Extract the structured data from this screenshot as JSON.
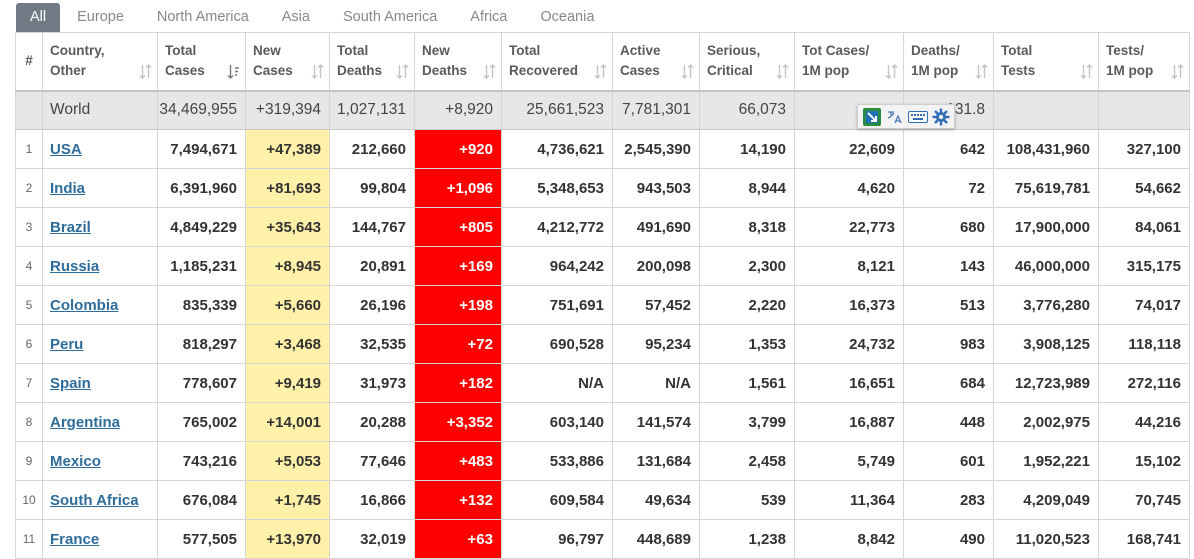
{
  "tabs": [
    {
      "label": "All",
      "active": true
    },
    {
      "label": "Europe"
    },
    {
      "label": "North America"
    },
    {
      "label": "Asia"
    },
    {
      "label": "South America"
    },
    {
      "label": "Africa"
    },
    {
      "label": "Oceania"
    }
  ],
  "columns": [
    {
      "key": "num",
      "line1": "#",
      "line2": ""
    },
    {
      "key": "country",
      "line1": "Country,",
      "line2": "Other"
    },
    {
      "key": "total_cases",
      "line1": "Total",
      "line2": "Cases"
    },
    {
      "key": "new_cases",
      "line1": "New",
      "line2": "Cases"
    },
    {
      "key": "total_deaths",
      "line1": "Total",
      "line2": "Deaths"
    },
    {
      "key": "new_deaths",
      "line1": "New",
      "line2": "Deaths"
    },
    {
      "key": "total_recovered",
      "line1": "Total",
      "line2": "Recovered"
    },
    {
      "key": "active_cases",
      "line1": "Active",
      "line2": "Cases"
    },
    {
      "key": "serious_critical",
      "line1": "Serious,",
      "line2": "Critical"
    },
    {
      "key": "cases_per_1m",
      "line1": "Tot Cases/",
      "line2": "1M pop"
    },
    {
      "key": "deaths_per_1m",
      "line1": "Deaths/",
      "line2": "1M pop"
    },
    {
      "key": "total_tests",
      "line1": "Total",
      "line2": "Tests"
    },
    {
      "key": "tests_per_1m",
      "line1": "Tests/",
      "line2": "1M pop"
    }
  ],
  "world": {
    "num": "",
    "country": "World",
    "total_cases": "34,469,955",
    "new_cases": "+319,394",
    "total_deaths": "1,027,131",
    "new_deaths": "+8,920",
    "total_recovered": "25,661,523",
    "active_cases": "7,781,301",
    "serious_critical": "66,073",
    "cases_per_1m": "",
    "deaths_per_1m": "131.8",
    "total_tests": "",
    "tests_per_1m": ""
  },
  "rows": [
    {
      "num": "1",
      "country": "USA",
      "total_cases": "7,494,671",
      "new_cases": "+47,389",
      "total_deaths": "212,660",
      "new_deaths": "+920",
      "total_recovered": "4,736,621",
      "active_cases": "2,545,390",
      "serious_critical": "14,190",
      "cases_per_1m": "22,609",
      "deaths_per_1m": "642",
      "total_tests": "108,431,960",
      "tests_per_1m": "327,100"
    },
    {
      "num": "2",
      "country": "India",
      "total_cases": "6,391,960",
      "new_cases": "+81,693",
      "total_deaths": "99,804",
      "new_deaths": "+1,096",
      "total_recovered": "5,348,653",
      "active_cases": "943,503",
      "serious_critical": "8,944",
      "cases_per_1m": "4,620",
      "deaths_per_1m": "72",
      "total_tests": "75,619,781",
      "tests_per_1m": "54,662"
    },
    {
      "num": "3",
      "country": "Brazil",
      "total_cases": "4,849,229",
      "new_cases": "+35,643",
      "total_deaths": "144,767",
      "new_deaths": "+805",
      "total_recovered": "4,212,772",
      "active_cases": "491,690",
      "serious_critical": "8,318",
      "cases_per_1m": "22,773",
      "deaths_per_1m": "680",
      "total_tests": "17,900,000",
      "tests_per_1m": "84,061"
    },
    {
      "num": "4",
      "country": "Russia",
      "total_cases": "1,185,231",
      "new_cases": "+8,945",
      "total_deaths": "20,891",
      "new_deaths": "+169",
      "total_recovered": "964,242",
      "active_cases": "200,098",
      "serious_critical": "2,300",
      "cases_per_1m": "8,121",
      "deaths_per_1m": "143",
      "total_tests": "46,000,000",
      "tests_per_1m": "315,175"
    },
    {
      "num": "5",
      "country": "Colombia",
      "total_cases": "835,339",
      "new_cases": "+5,660",
      "total_deaths": "26,196",
      "new_deaths": "+198",
      "total_recovered": "751,691",
      "active_cases": "57,452",
      "serious_critical": "2,220",
      "cases_per_1m": "16,373",
      "deaths_per_1m": "513",
      "total_tests": "3,776,280",
      "tests_per_1m": "74,017"
    },
    {
      "num": "6",
      "country": "Peru",
      "total_cases": "818,297",
      "new_cases": "+3,468",
      "total_deaths": "32,535",
      "new_deaths": "+72",
      "total_recovered": "690,528",
      "active_cases": "95,234",
      "serious_critical": "1,353",
      "cases_per_1m": "24,732",
      "deaths_per_1m": "983",
      "total_tests": "3,908,125",
      "tests_per_1m": "118,118"
    },
    {
      "num": "7",
      "country": "Spain",
      "total_cases": "778,607",
      "new_cases": "+9,419",
      "total_deaths": "31,973",
      "new_deaths": "+182",
      "total_recovered": "N/A",
      "active_cases": "N/A",
      "serious_critical": "1,561",
      "cases_per_1m": "16,651",
      "deaths_per_1m": "684",
      "total_tests": "12,723,989",
      "tests_per_1m": "272,116"
    },
    {
      "num": "8",
      "country": "Argentina",
      "total_cases": "765,002",
      "new_cases": "+14,001",
      "total_deaths": "20,288",
      "new_deaths": "+3,352",
      "total_recovered": "603,140",
      "active_cases": "141,574",
      "serious_critical": "3,799",
      "cases_per_1m": "16,887",
      "deaths_per_1m": "448",
      "total_tests": "2,002,975",
      "tests_per_1m": "44,216"
    },
    {
      "num": "9",
      "country": "Mexico",
      "total_cases": "743,216",
      "new_cases": "+5,053",
      "total_deaths": "77,646",
      "new_deaths": "+483",
      "total_recovered": "533,886",
      "active_cases": "131,684",
      "serious_critical": "2,458",
      "cases_per_1m": "5,749",
      "deaths_per_1m": "601",
      "total_tests": "1,952,221",
      "tests_per_1m": "15,102"
    },
    {
      "num": "10",
      "country": "South Africa",
      "total_cases": "676,084",
      "new_cases": "+1,745",
      "total_deaths": "16,866",
      "new_deaths": "+132",
      "total_recovered": "609,584",
      "active_cases": "49,634",
      "serious_critical": "539",
      "cases_per_1m": "11,364",
      "deaths_per_1m": "283",
      "total_tests": "4,209,049",
      "tests_per_1m": "70,745"
    },
    {
      "num": "11",
      "country": "France",
      "total_cases": "577,505",
      "new_cases": "+13,970",
      "total_deaths": "32,019",
      "new_deaths": "+63",
      "total_recovered": "96,797",
      "active_cases": "448,689",
      "serious_critical": "1,238",
      "cases_per_1m": "8,842",
      "deaths_per_1m": "490",
      "total_tests": "11,020,523",
      "tests_per_1m": "168,741"
    }
  ],
  "toolbar_icons": [
    "image-capture-icon",
    "translate-icon",
    "keyboard-icon",
    "gear-icon"
  ],
  "colors": {
    "new_cases_bg": "#fff0aa",
    "new_deaths_bg": "#ff0000",
    "link": "#2e6c9c",
    "tab_active_bg": "#707a85",
    "world_row_bg": "#e7e7e7"
  }
}
